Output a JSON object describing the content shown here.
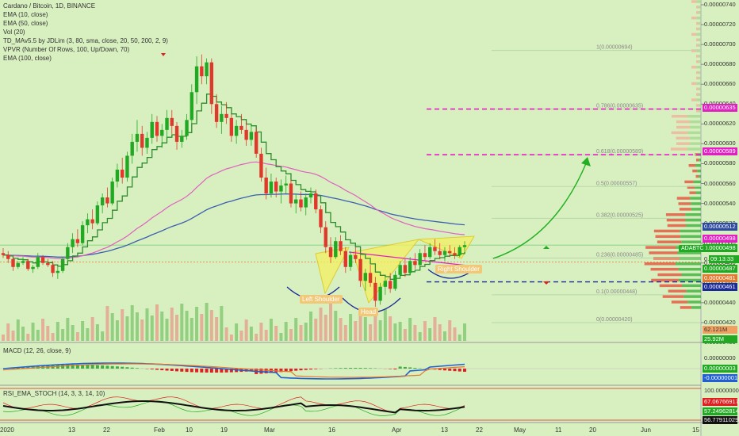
{
  "legend_main": [
    "Cardano / Bitcoin, 1D, BINANCE",
    "EMA (10, close)",
    "EMA (50, close)",
    "Vol (20)",
    "TD_MAv5.5 by JDLim (3, 80, sma, close, 20, 50, 200, 2, 9)",
    "VPVR (Number Of Rows, 100, Up/Down, 70)",
    "EMA (100, close)"
  ],
  "legend_macd": "MACD (12, 26, close, 9)",
  "legend_rsi": "RSI_EMA_STOCH (14, 3, 3, 14, 10)",
  "price_ticks": [
    "0.00000740",
    "0.00000720",
    "0.00000700",
    "0.00000680",
    "0.00000660",
    "0.00000640",
    "0.00000620",
    "0.00000600",
    "0.00000580",
    "0.00000560",
    "0.00000540",
    "0.00000520",
    "0.00000500",
    "0.00000480",
    "0.00000460",
    "0.00000440",
    "0.00000420",
    "0.00000400"
  ],
  "fib_labels": [
    "1(0.00000694)",
    "0.786(0.00000635)",
    "0.618(0.00000589)",
    "0.5(0.00000557)",
    "0.382(0.00000525)",
    "0.236(0.00000485)",
    "0.1(0.00000448)",
    "0(0.00000420)"
  ],
  "price_labels": {
    "l635": "0.00000635",
    "l589": "0.00000589",
    "l512": "0.00000512",
    "l498a": "0.00000498",
    "l498b": "0.00000498",
    "symbol": "ADABTC",
    "l4xx": "0.",
    "timer": "09:13:33",
    "l487": "0.00000487",
    "l481": "0.00000481",
    "l461": "0.00000461",
    "vol1": "62.121M",
    "vol2": "25.92M"
  },
  "macd_labels": {
    "a": "0.00000003",
    "b": "-0.00000001",
    "zero": "0.00000000"
  },
  "rsi_labels": {
    "top": "100.0000000",
    "a": "67.06766917",
    "b": "57.24962814",
    "c": "56.77911029"
  },
  "x_labels": [
    "2020",
    "13",
    "22",
    "Feb",
    "10",
    "19",
    "Mar",
    "16",
    "Apr",
    "13",
    "22",
    "May",
    "11",
    "20",
    "Jun",
    "15"
  ],
  "pattern_labels": {
    "left": "Left Shoulder",
    "head": "Head",
    "right": "Right Shoulder"
  },
  "colors": {
    "up": "#22a822",
    "down": "#e0392b",
    "ema10": "#2e8b2e",
    "ema50": "#e060c0",
    "ema100": "#3b5fb0",
    "fib_mag": "#e020c0",
    "blue_dash": "#1a2a9a",
    "bg": "#d8f0c0"
  },
  "chart_data": {
    "type": "candlestick",
    "symbol": "Cardano / Bitcoin",
    "interval": "1D",
    "exchange": "BINANCE",
    "ylim": [
      4e-06,
      7.4e-06
    ],
    "candles": [
      [
        4.9,
        4.95,
        4.85,
        4.88
      ],
      [
        4.88,
        4.92,
        4.8,
        4.84
      ],
      [
        4.84,
        4.86,
        4.72,
        4.76
      ],
      [
        4.76,
        4.82,
        4.74,
        4.8
      ],
      [
        4.8,
        4.86,
        4.78,
        4.82
      ],
      [
        4.82,
        4.84,
        4.72,
        4.74
      ],
      [
        4.74,
        4.78,
        4.7,
        4.76
      ],
      [
        4.76,
        4.9,
        4.74,
        4.86
      ],
      [
        4.86,
        4.88,
        4.78,
        4.8
      ],
      [
        4.8,
        4.84,
        4.76,
        4.78
      ],
      [
        4.78,
        4.82,
        4.66,
        4.7
      ],
      [
        4.7,
        4.76,
        4.64,
        4.72
      ],
      [
        4.72,
        4.86,
        4.7,
        4.84
      ],
      [
        4.84,
        5.0,
        4.82,
        4.96
      ],
      [
        4.96,
        5.1,
        4.9,
        5.04
      ],
      [
        5.04,
        5.14,
        4.96,
        5.0
      ],
      [
        5.0,
        5.22,
        4.98,
        5.18
      ],
      [
        5.18,
        5.3,
        5.1,
        5.24
      ],
      [
        5.24,
        5.34,
        5.14,
        5.2
      ],
      [
        5.2,
        5.42,
        5.18,
        5.38
      ],
      [
        5.38,
        5.5,
        5.3,
        5.46
      ],
      [
        5.46,
        5.56,
        5.36,
        5.4
      ],
      [
        5.4,
        5.66,
        5.38,
        5.62
      ],
      [
        5.62,
        5.8,
        5.56,
        5.74
      ],
      [
        5.74,
        5.86,
        5.6,
        5.66
      ],
      [
        5.66,
        5.92,
        5.62,
        5.88
      ],
      [
        5.88,
        6.1,
        5.8,
        6.02
      ],
      [
        6.02,
        6.24,
        5.92,
        6.1
      ],
      [
        6.1,
        6.18,
        5.88,
        5.96
      ],
      [
        5.96,
        6.12,
        5.9,
        6.06
      ],
      [
        6.06,
        6.3,
        6.0,
        6.22
      ],
      [
        6.22,
        6.28,
        6.02,
        6.08
      ],
      [
        6.08,
        6.2,
        5.96,
        6.14
      ],
      [
        6.14,
        6.34,
        6.06,
        6.26
      ],
      [
        6.26,
        6.34,
        6.1,
        6.18
      ],
      [
        6.18,
        6.22,
        5.94,
        6.02
      ],
      [
        6.02,
        6.14,
        5.96,
        6.08
      ],
      [
        6.08,
        6.3,
        6.04,
        6.24
      ],
      [
        6.24,
        6.6,
        6.2,
        6.52
      ],
      [
        6.52,
        6.88,
        6.4,
        6.78
      ],
      [
        6.78,
        6.9,
        6.6,
        6.68
      ],
      [
        6.68,
        6.86,
        6.6,
        6.82
      ],
      [
        6.82,
        6.86,
        6.3,
        6.4
      ],
      [
        6.4,
        6.5,
        6.16,
        6.22
      ],
      [
        6.22,
        6.38,
        6.1,
        6.3
      ],
      [
        6.3,
        6.42,
        6.2,
        6.26
      ],
      [
        6.26,
        6.3,
        6.02,
        6.08
      ],
      [
        6.08,
        6.24,
        6.0,
        6.18
      ],
      [
        6.18,
        6.3,
        6.1,
        6.14
      ],
      [
        6.14,
        6.22,
        5.98,
        6.04
      ],
      [
        6.04,
        6.2,
        5.98,
        6.12
      ],
      [
        6.12,
        6.16,
        5.86,
        5.9
      ],
      [
        5.9,
        5.96,
        5.62,
        5.66
      ],
      [
        5.66,
        5.76,
        5.44,
        5.5
      ],
      [
        5.5,
        5.7,
        5.46,
        5.62
      ],
      [
        5.62,
        5.66,
        5.46,
        5.52
      ],
      [
        5.52,
        5.64,
        5.4,
        5.58
      ],
      [
        5.58,
        5.68,
        5.5,
        5.6
      ],
      [
        5.6,
        5.64,
        5.36,
        5.4
      ],
      [
        5.4,
        5.5,
        5.3,
        5.44
      ],
      [
        5.44,
        5.52,
        5.32,
        5.36
      ],
      [
        5.36,
        5.5,
        5.28,
        5.46
      ],
      [
        5.46,
        5.56,
        5.4,
        5.5
      ],
      [
        5.5,
        5.54,
        5.3,
        5.34
      ],
      [
        5.34,
        5.38,
        5.1,
        5.16
      ],
      [
        5.16,
        5.22,
        4.9,
        4.96
      ],
      [
        4.96,
        5.06,
        4.8,
        4.86
      ],
      [
        4.86,
        5.06,
        4.84,
        5.02
      ],
      [
        5.02,
        5.08,
        4.88,
        4.92
      ],
      [
        4.92,
        4.96,
        4.7,
        4.76
      ],
      [
        4.76,
        4.92,
        4.72,
        4.88
      ],
      [
        4.88,
        4.96,
        4.8,
        4.84
      ],
      [
        4.84,
        4.88,
        4.56,
        4.62
      ],
      [
        4.62,
        4.74,
        4.52,
        4.7
      ],
      [
        4.7,
        4.78,
        4.56,
        4.6
      ],
      [
        4.6,
        4.66,
        4.36,
        4.42
      ],
      [
        4.42,
        4.6,
        4.38,
        4.56
      ],
      [
        4.56,
        4.66,
        4.48,
        4.62
      ],
      [
        4.62,
        4.7,
        4.5,
        4.54
      ],
      [
        4.54,
        4.72,
        4.52,
        4.68
      ],
      [
        4.68,
        4.82,
        4.64,
        4.78
      ],
      [
        4.78,
        4.84,
        4.66,
        4.7
      ],
      [
        4.7,
        4.86,
        4.68,
        4.82
      ],
      [
        4.82,
        4.9,
        4.74,
        4.78
      ],
      [
        4.78,
        4.94,
        4.76,
        4.9
      ],
      [
        4.9,
        4.98,
        4.82,
        4.86
      ],
      [
        4.86,
        5.0,
        4.84,
        4.96
      ],
      [
        4.96,
        5.04,
        4.88,
        4.92
      ],
      [
        4.92,
        5.0,
        4.84,
        4.88
      ],
      [
        4.88,
        4.96,
        4.82,
        4.92
      ],
      [
        4.92,
        4.98,
        4.86,
        4.9
      ],
      [
        4.9,
        4.96,
        4.84,
        4.88
      ],
      [
        4.88,
        4.98,
        4.86,
        4.96
      ],
      [
        4.96,
        5.02,
        4.92,
        4.98
      ]
    ],
    "fib_levels": [
      6.94,
      6.35,
      5.89,
      5.57,
      5.25,
      4.85,
      4.48,
      4.2
    ],
    "horizontal_lines": [
      6.35,
      5.89,
      4.61
    ]
  }
}
